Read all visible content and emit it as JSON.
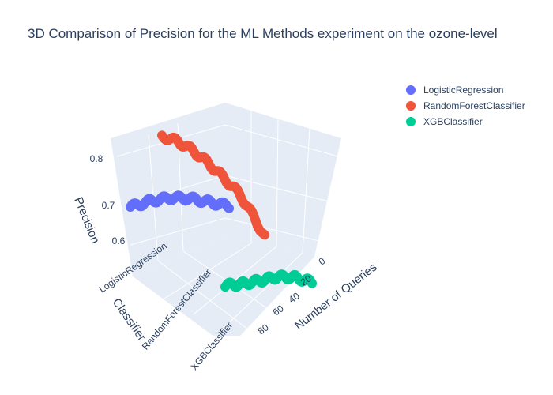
{
  "chart_data": {
    "type": "scatter3d",
    "title": "3D Comparison of Precision for the ML Methods experiment on the ozone-level",
    "axes": {
      "x": {
        "label": "Number of Queries",
        "ticks": [
          0,
          20,
          40,
          60,
          80
        ]
      },
      "y": {
        "label": "Classifier",
        "categories": [
          "LogisticRegression",
          "RandomForestClassifier",
          "XGBClassifier"
        ]
      },
      "z": {
        "label": "Precision",
        "ticks": [
          0.6,
          0.7,
          0.8
        ]
      }
    },
    "legend_position": "top-right",
    "series": [
      {
        "name": "LogisticRegression",
        "color": "#636efa",
        "y_category": "LogisticRegression",
        "x_range": [
          0,
          99
        ],
        "z_profile": [
          [
            0,
            0.7
          ],
          [
            20,
            0.712
          ],
          [
            40,
            0.718
          ],
          [
            60,
            0.715
          ],
          [
            80,
            0.705
          ],
          [
            99,
            0.695
          ]
        ]
      },
      {
        "name": "RandomForestClassifier",
        "color": "#ef553b",
        "y_category": "RandomForestClassifier",
        "x_range": [
          0,
          99
        ],
        "z_profile": [
          [
            0,
            0.785
          ],
          [
            15,
            0.79
          ],
          [
            30,
            0.785
          ],
          [
            45,
            0.772
          ],
          [
            60,
            0.755
          ],
          [
            75,
            0.735
          ],
          [
            88,
            0.7
          ],
          [
            99,
            0.665
          ]
        ]
      },
      {
        "name": "XGBClassifier",
        "color": "#00cc96",
        "y_category": "XGBClassifier",
        "x_range": [
          0,
          99
        ],
        "z_profile": [
          [
            0,
            0.63
          ],
          [
            20,
            0.632
          ],
          [
            40,
            0.638
          ],
          [
            60,
            0.645
          ],
          [
            80,
            0.642
          ],
          [
            99,
            0.63
          ]
        ]
      }
    ]
  },
  "title": "3D Comparison of Precision for the ML Methods experiment on the ozone-level",
  "legend": [
    {
      "label": "LogisticRegression",
      "color": "#636efa"
    },
    {
      "label": "RandomForestClassifier",
      "color": "#ef553b"
    },
    {
      "label": "XGBClassifier",
      "color": "#00cc96"
    }
  ],
  "tick_labels": {
    "z": [
      "0.6",
      "0.7",
      "0.8"
    ],
    "x": [
      "0",
      "20",
      "40",
      "60",
      "80"
    ],
    "y": [
      "LogisticRegression",
      "RandomForestClassifier",
      "XGBClassifier"
    ]
  },
  "axis_titles": {
    "x": "Number of Queries",
    "y": "Classifier",
    "z": "Precision"
  }
}
